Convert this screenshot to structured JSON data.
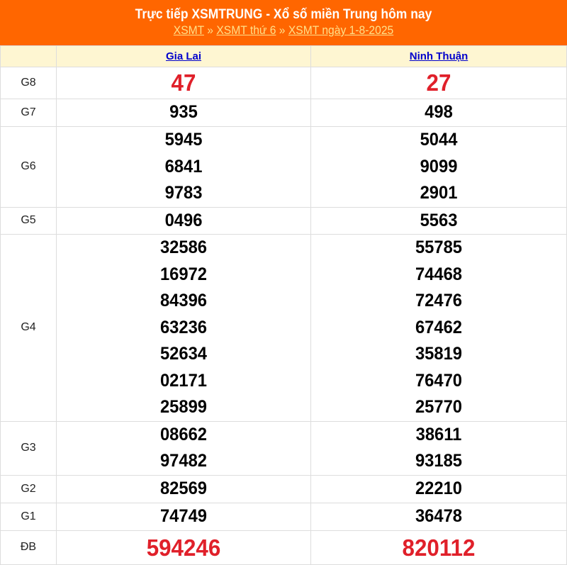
{
  "header": {
    "title": "Trực tiếp XSMTRUNG - Xổ số miền Trung hôm nay",
    "breadcrumb": [
      {
        "label": "XSMT"
      },
      {
        "label": "XSMT thứ 6"
      },
      {
        "label": "XSMT ngày 1-8-2025"
      }
    ],
    "separator": "»"
  },
  "provinces": [
    "Gia Lai",
    "Ninh Thuận"
  ],
  "colors": {
    "header_bg": "#ff6600",
    "highlight": "#e0202a",
    "column_header_bg": "#fef6d2"
  },
  "prizes": [
    {
      "label": "G8",
      "highlight": true,
      "values": [
        [
          "47"
        ],
        [
          "27"
        ]
      ]
    },
    {
      "label": "G7",
      "values": [
        [
          "935"
        ],
        [
          "498"
        ]
      ]
    },
    {
      "label": "G6",
      "values": [
        [
          "5945",
          "6841",
          "9783"
        ],
        [
          "5044",
          "9099",
          "2901"
        ]
      ]
    },
    {
      "label": "G5",
      "values": [
        [
          "0496"
        ],
        [
          "5563"
        ]
      ]
    },
    {
      "label": "G4",
      "values": [
        [
          "32586",
          "16972",
          "84396",
          "63236",
          "52634",
          "02171",
          "25899"
        ],
        [
          "55785",
          "74468",
          "72476",
          "67462",
          "35819",
          "76470",
          "25770"
        ]
      ]
    },
    {
      "label": "G3",
      "values": [
        [
          "08662",
          "97482"
        ],
        [
          "38611",
          "93185"
        ]
      ]
    },
    {
      "label": "G2",
      "values": [
        [
          "82569"
        ],
        [
          "22210"
        ]
      ]
    },
    {
      "label": "G1",
      "values": [
        [
          "74749"
        ],
        [
          "36478"
        ]
      ]
    },
    {
      "label": "ĐB",
      "highlight": true,
      "values": [
        [
          "594246"
        ],
        [
          "820112"
        ]
      ]
    }
  ]
}
